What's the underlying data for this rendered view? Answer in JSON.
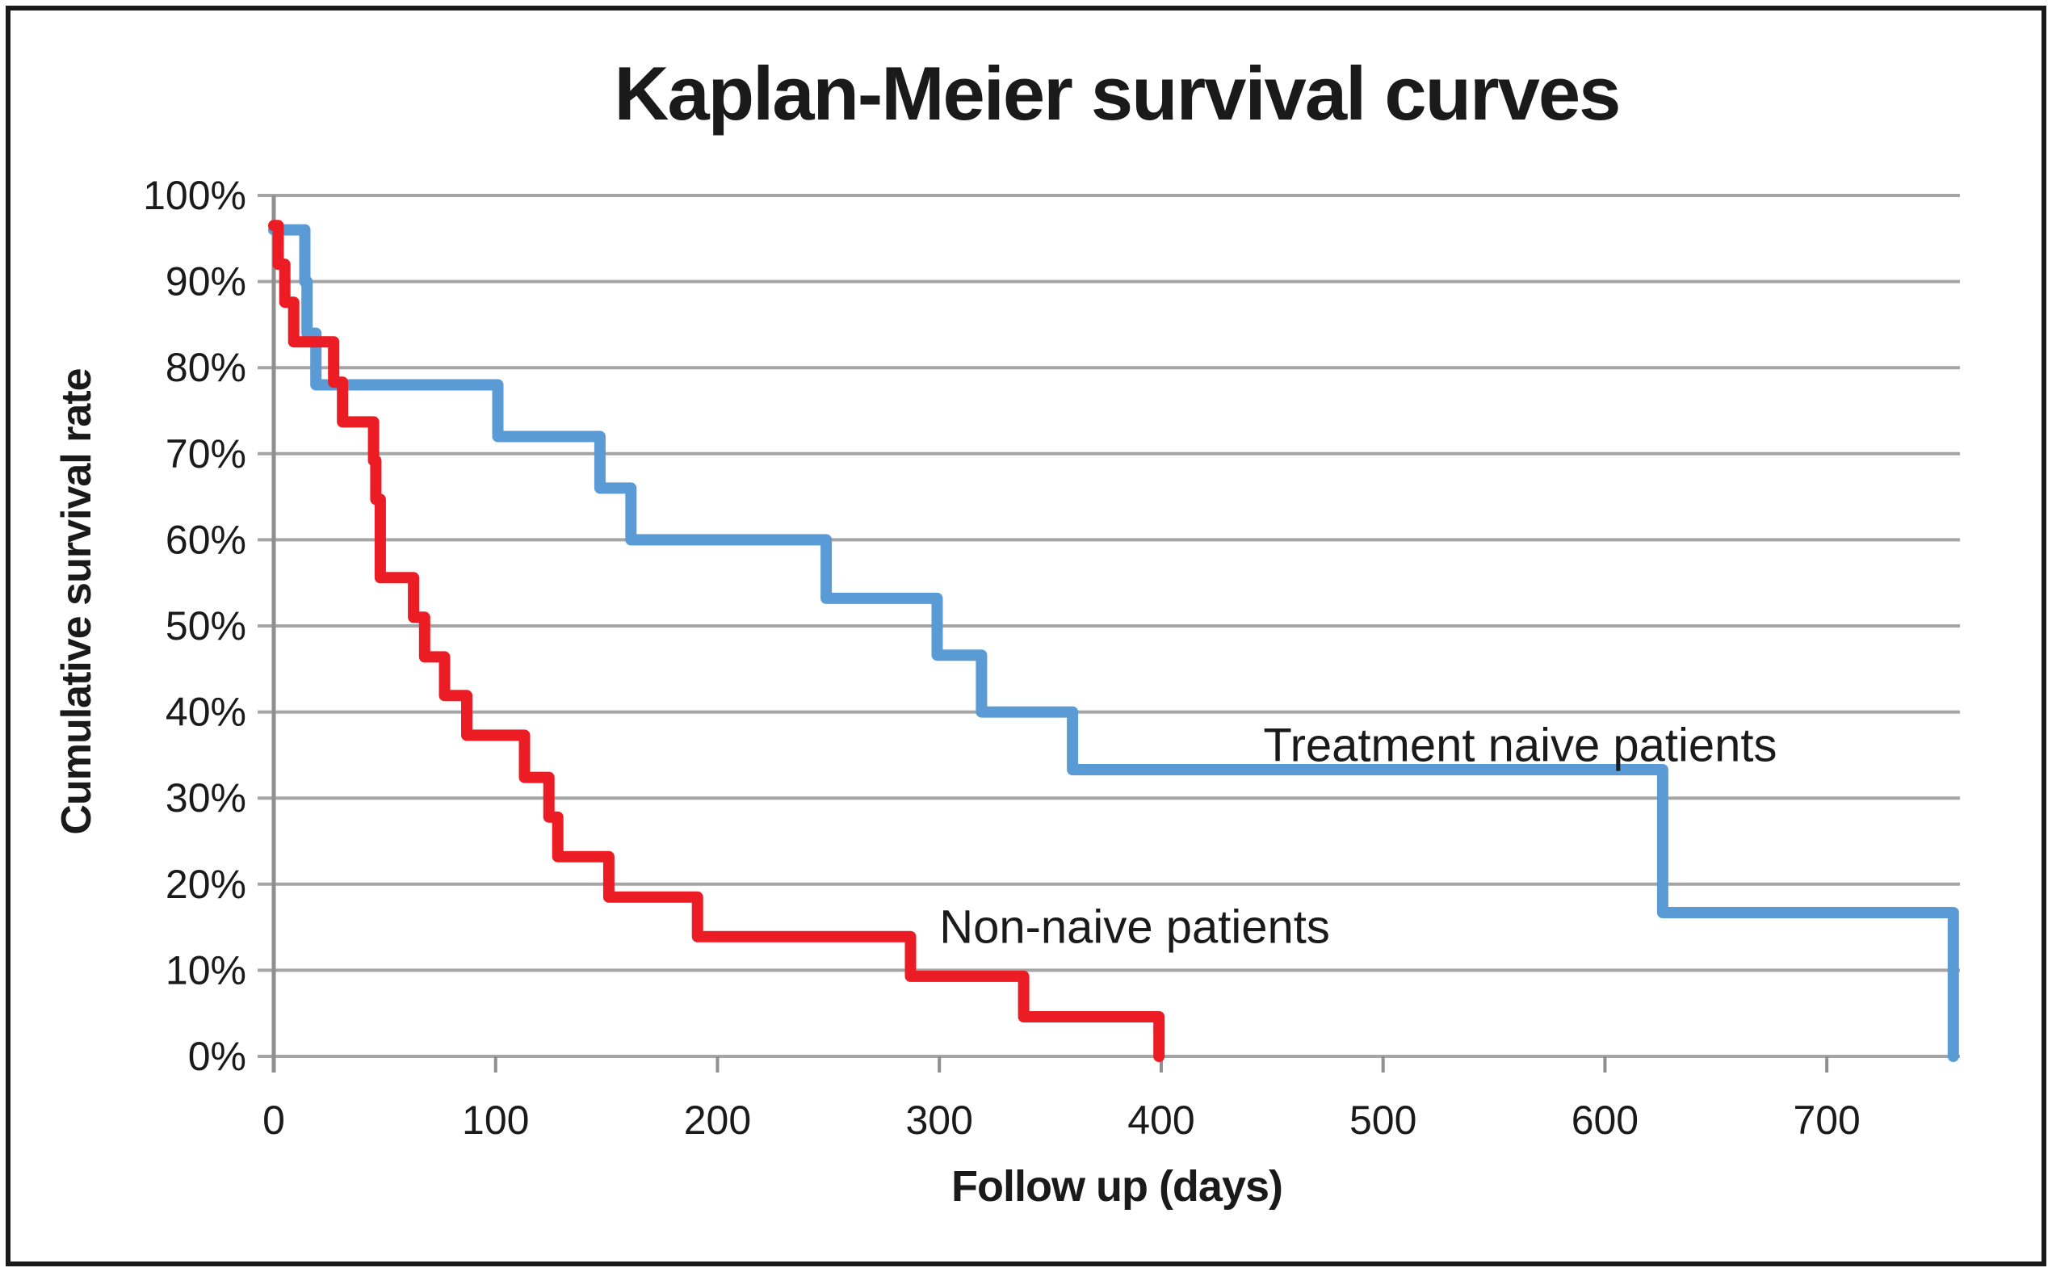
{
  "figure": {
    "background": "#FFFFFF",
    "border_color": "#1A1A1A",
    "text_color": "#1A1A1A",
    "grid_color": "#A5A5A5",
    "axis_color": "#8F8F8F"
  },
  "chart_data": {
    "type": "line",
    "subtype": "kaplan-meier-step",
    "title": "Kaplan-Meier survival curves",
    "xlabel": "Follow up (days)",
    "ylabel": "Cumulative survival rate",
    "xlim": [
      0,
      760
    ],
    "ylim": [
      0,
      100
    ],
    "x_ticks": [
      0,
      100,
      200,
      300,
      400,
      500,
      600,
      700
    ],
    "x_tick_labels": [
      "0",
      "100",
      "200",
      "300",
      "400",
      "500",
      "600",
      "700"
    ],
    "y_ticks": [
      0,
      10,
      20,
      30,
      40,
      50,
      60,
      70,
      80,
      90,
      100
    ],
    "y_tick_labels": [
      "0%",
      "10%",
      "20%",
      "30%",
      "40%",
      "50%",
      "60%",
      "70%",
      "80%",
      "90%",
      "100%"
    ],
    "grid": "horizontal-only",
    "legend": "inline-text-labels",
    "series": [
      {
        "name": "Treatment naive patients",
        "slug": "treatment-naive",
        "line_color": "#5B9BD5",
        "label_color": "#1F72BE",
        "label_anchor": {
          "x_day": 446,
          "y_pct": 34.3
        },
        "steps_note": "each pair is [day, survival % after the drop at that day]; first pair is the starting level",
        "steps": [
          [
            0,
            96.0
          ],
          [
            14,
            90.0
          ],
          [
            15,
            84.0
          ],
          [
            19,
            78.0
          ],
          [
            101,
            72.0
          ],
          [
            147,
            66.0
          ],
          [
            161,
            60.0
          ],
          [
            249,
            53.2
          ],
          [
            299,
            46.6
          ],
          [
            319,
            40.0
          ],
          [
            360,
            33.3
          ],
          [
            626,
            16.7
          ],
          [
            757,
            0
          ]
        ]
      },
      {
        "name": "Non-naive patients",
        "slug": "non-naive",
        "line_color": "#EC1C24",
        "label_color": "#EC1C24",
        "label_anchor": {
          "x_day": 300,
          "y_pct": 13.2
        },
        "steps": [
          [
            0,
            96.5
          ],
          [
            2,
            92.0
          ],
          [
            5,
            87.6
          ],
          [
            9,
            83.0
          ],
          [
            27,
            78.3
          ],
          [
            31,
            73.7
          ],
          [
            45,
            69.2
          ],
          [
            46,
            64.7
          ],
          [
            48,
            55.6
          ],
          [
            63,
            51.0
          ],
          [
            68,
            46.4
          ],
          [
            77,
            41.9
          ],
          [
            87,
            37.3
          ],
          [
            113,
            32.4
          ],
          [
            124,
            27.8
          ],
          [
            128,
            23.2
          ],
          [
            151,
            18.5
          ],
          [
            191,
            13.9
          ],
          [
            287,
            9.3
          ],
          [
            338,
            4.6
          ],
          [
            399,
            0
          ]
        ]
      }
    ]
  }
}
